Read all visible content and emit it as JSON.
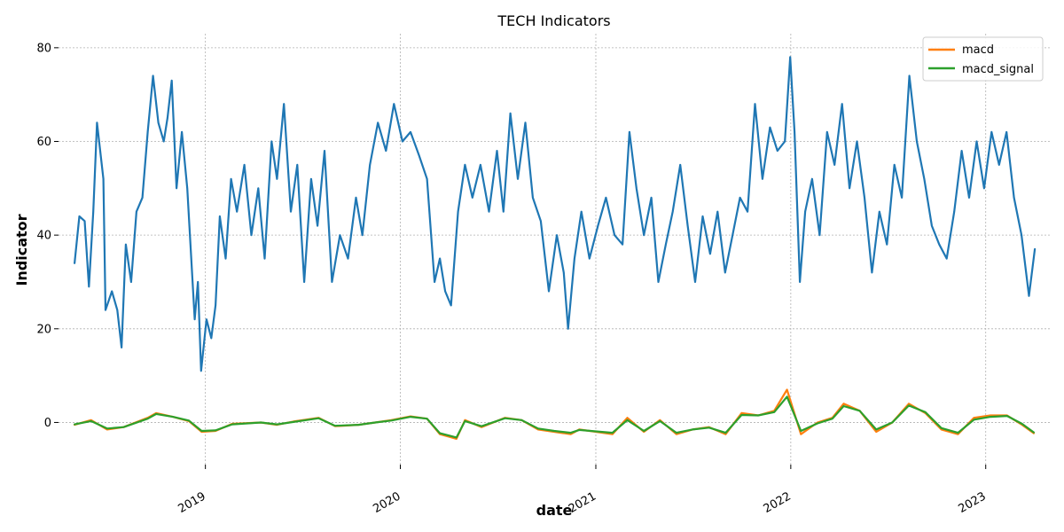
{
  "chart_data": {
    "type": "line",
    "title": "TECH Indicators",
    "xlabel": "date",
    "ylabel": "Indicator",
    "xlim": [
      "2018-04-01",
      "2023-05-01"
    ],
    "ylim": [
      -9,
      83
    ],
    "x_ticks": [
      "2019",
      "2020",
      "2021",
      "2022",
      "2023"
    ],
    "y_ticks": [
      0,
      20,
      40,
      60,
      80
    ],
    "grid": true,
    "legend_position": "top-right",
    "colors": {
      "rsi": "#1f77b4",
      "macd": "#ff7f0e",
      "macd_signal": "#2ca02c"
    },
    "series": [
      {
        "key": "rsi",
        "values": [
          [
            "2018-05-01",
            34
          ],
          [
            "2018-05-10",
            44
          ],
          [
            "2018-05-20",
            43
          ],
          [
            "2018-05-28",
            29
          ],
          [
            "2018-06-05",
            45
          ],
          [
            "2018-06-12",
            64
          ],
          [
            "2018-06-24",
            52
          ],
          [
            "2018-06-28",
            24
          ],
          [
            "2018-07-10",
            28
          ],
          [
            "2018-07-20",
            24
          ],
          [
            "2018-07-28",
            16
          ],
          [
            "2018-08-05",
            38
          ],
          [
            "2018-08-15",
            30
          ],
          [
            "2018-08-25",
            45
          ],
          [
            "2018-09-05",
            48
          ],
          [
            "2018-09-15",
            62
          ],
          [
            "2018-09-25",
            74
          ],
          [
            "2018-10-05",
            64
          ],
          [
            "2018-10-15",
            60
          ],
          [
            "2018-10-22",
            65
          ],
          [
            "2018-10-30",
            73
          ],
          [
            "2018-11-08",
            50
          ],
          [
            "2018-11-18",
            62
          ],
          [
            "2018-11-28",
            50
          ],
          [
            "2018-12-12",
            22
          ],
          [
            "2018-12-18",
            30
          ],
          [
            "2018-12-24",
            11
          ],
          [
            "2019-01-03",
            22
          ],
          [
            "2019-01-12",
            18
          ],
          [
            "2019-01-20",
            25
          ],
          [
            "2019-01-28",
            44
          ],
          [
            "2019-02-08",
            35
          ],
          [
            "2019-02-18",
            52
          ],
          [
            "2019-03-01",
            45
          ],
          [
            "2019-03-15",
            55
          ],
          [
            "2019-03-28",
            40
          ],
          [
            "2019-04-10",
            50
          ],
          [
            "2019-04-22",
            35
          ],
          [
            "2019-05-05",
            60
          ],
          [
            "2019-05-15",
            52
          ],
          [
            "2019-05-28",
            68
          ],
          [
            "2019-06-10",
            45
          ],
          [
            "2019-06-22",
            55
          ],
          [
            "2019-07-05",
            30
          ],
          [
            "2019-07-18",
            52
          ],
          [
            "2019-07-30",
            42
          ],
          [
            "2019-08-12",
            58
          ],
          [
            "2019-08-26",
            30
          ],
          [
            "2019-09-10",
            40
          ],
          [
            "2019-09-25",
            35
          ],
          [
            "2019-10-10",
            48
          ],
          [
            "2019-10-22",
            40
          ],
          [
            "2019-11-05",
            55
          ],
          [
            "2019-11-20",
            64
          ],
          [
            "2019-12-05",
            58
          ],
          [
            "2019-12-20",
            68
          ],
          [
            "2020-01-05",
            60
          ],
          [
            "2020-01-20",
            62
          ],
          [
            "2020-02-05",
            57
          ],
          [
            "2020-02-20",
            52
          ],
          [
            "2020-03-05",
            30
          ],
          [
            "2020-03-15",
            35
          ],
          [
            "2020-03-25",
            28
          ],
          [
            "2020-04-05",
            25
          ],
          [
            "2020-04-18",
            45
          ],
          [
            "2020-05-01",
            55
          ],
          [
            "2020-05-15",
            48
          ],
          [
            "2020-05-30",
            55
          ],
          [
            "2020-06-15",
            45
          ],
          [
            "2020-06-30",
            58
          ],
          [
            "2020-07-12",
            45
          ],
          [
            "2020-07-25",
            66
          ],
          [
            "2020-08-08",
            52
          ],
          [
            "2020-08-22",
            64
          ],
          [
            "2020-09-05",
            48
          ],
          [
            "2020-09-20",
            43
          ],
          [
            "2020-10-05",
            28
          ],
          [
            "2020-10-20",
            40
          ],
          [
            "2020-11-02",
            32
          ],
          [
            "2020-11-10",
            20
          ],
          [
            "2020-11-22",
            35
          ],
          [
            "2020-12-05",
            45
          ],
          [
            "2020-12-20",
            35
          ],
          [
            "2021-01-05",
            42
          ],
          [
            "2021-01-20",
            48
          ],
          [
            "2021-02-05",
            40
          ],
          [
            "2021-02-20",
            38
          ],
          [
            "2021-03-05",
            62
          ],
          [
            "2021-03-18",
            50
          ],
          [
            "2021-04-01",
            40
          ],
          [
            "2021-04-15",
            48
          ],
          [
            "2021-04-28",
            30
          ],
          [
            "2021-05-12",
            38
          ],
          [
            "2021-05-25",
            45
          ],
          [
            "2021-06-08",
            55
          ],
          [
            "2021-06-22",
            42
          ],
          [
            "2021-07-06",
            30
          ],
          [
            "2021-07-20",
            44
          ],
          [
            "2021-08-03",
            36
          ],
          [
            "2021-08-17",
            45
          ],
          [
            "2021-08-31",
            32
          ],
          [
            "2021-09-14",
            40
          ],
          [
            "2021-09-28",
            48
          ],
          [
            "2021-10-12",
            45
          ],
          [
            "2021-10-26",
            68
          ],
          [
            "2021-11-09",
            52
          ],
          [
            "2021-11-23",
            63
          ],
          [
            "2021-12-07",
            58
          ],
          [
            "2021-12-21",
            60
          ],
          [
            "2021-12-31",
            78
          ],
          [
            "2022-01-08",
            62
          ],
          [
            "2022-01-18",
            30
          ],
          [
            "2022-01-28",
            45
          ],
          [
            "2022-02-10",
            52
          ],
          [
            "2022-02-24",
            40
          ],
          [
            "2022-03-10",
            62
          ],
          [
            "2022-03-24",
            55
          ],
          [
            "2022-04-07",
            68
          ],
          [
            "2022-04-21",
            50
          ],
          [
            "2022-05-05",
            60
          ],
          [
            "2022-05-19",
            48
          ],
          [
            "2022-06-02",
            32
          ],
          [
            "2022-06-16",
            45
          ],
          [
            "2022-06-30",
            38
          ],
          [
            "2022-07-14",
            55
          ],
          [
            "2022-07-28",
            48
          ],
          [
            "2022-08-11",
            74
          ],
          [
            "2022-08-25",
            60
          ],
          [
            "2022-09-08",
            52
          ],
          [
            "2022-09-22",
            42
          ],
          [
            "2022-10-06",
            38
          ],
          [
            "2022-10-20",
            35
          ],
          [
            "2022-11-03",
            45
          ],
          [
            "2022-11-17",
            58
          ],
          [
            "2022-12-01",
            48
          ],
          [
            "2022-12-15",
            60
          ],
          [
            "2022-12-29",
            50
          ],
          [
            "2023-01-12",
            62
          ],
          [
            "2023-01-26",
            55
          ],
          [
            "2023-02-09",
            62
          ],
          [
            "2023-02-23",
            48
          ],
          [
            "2023-03-09",
            40
          ],
          [
            "2023-03-23",
            27
          ],
          [
            "2023-04-03",
            37
          ]
        ]
      },
      {
        "key": "macd",
        "name": "macd",
        "values": [
          [
            "2018-05-01",
            -0.5
          ],
          [
            "2018-06-01",
            0.5
          ],
          [
            "2018-07-01",
            -1.5
          ],
          [
            "2018-08-01",
            -1.0
          ],
          [
            "2018-09-15",
            1.0
          ],
          [
            "2018-10-01",
            2.0
          ],
          [
            "2018-11-01",
            1.2
          ],
          [
            "2018-12-01",
            0.3
          ],
          [
            "2018-12-25",
            -2.0
          ],
          [
            "2019-01-20",
            -1.8
          ],
          [
            "2019-02-20",
            -0.3
          ],
          [
            "2019-04-15",
            0.0
          ],
          [
            "2019-05-15",
            -0.5
          ],
          [
            "2019-06-15",
            0.2
          ],
          [
            "2019-08-01",
            1.0
          ],
          [
            "2019-09-01",
            -0.8
          ],
          [
            "2019-10-15",
            -0.5
          ],
          [
            "2019-11-15",
            0.0
          ],
          [
            "2019-12-15",
            0.5
          ],
          [
            "2020-01-20",
            1.3
          ],
          [
            "2020-02-20",
            0.8
          ],
          [
            "2020-03-15",
            -2.5
          ],
          [
            "2020-04-15",
            -3.5
          ],
          [
            "2020-05-01",
            0.5
          ],
          [
            "2020-06-01",
            -1.0
          ],
          [
            "2020-07-15",
            1.0
          ],
          [
            "2020-08-15",
            0.5
          ],
          [
            "2020-09-15",
            -1.5
          ],
          [
            "2020-10-15",
            -2.0
          ],
          [
            "2020-11-15",
            -2.5
          ],
          [
            "2020-12-01",
            -1.5
          ],
          [
            "2021-01-01",
            -2.0
          ],
          [
            "2021-02-01",
            -2.5
          ],
          [
            "2021-03-01",
            1.0
          ],
          [
            "2021-04-01",
            -2.0
          ],
          [
            "2021-05-01",
            0.5
          ],
          [
            "2021-06-01",
            -2.5
          ],
          [
            "2021-07-01",
            -1.5
          ],
          [
            "2021-08-01",
            -1.0
          ],
          [
            "2021-09-01",
            -2.5
          ],
          [
            "2021-10-01",
            2.0
          ],
          [
            "2021-11-01",
            1.5
          ],
          [
            "2021-12-01",
            2.5
          ],
          [
            "2021-12-25",
            7.0
          ],
          [
            "2022-01-20",
            -2.5
          ],
          [
            "2022-02-20",
            0.0
          ],
          [
            "2022-03-20",
            1.0
          ],
          [
            "2022-04-10",
            4.0
          ],
          [
            "2022-05-10",
            2.5
          ],
          [
            "2022-06-10",
            -2.0
          ],
          [
            "2022-07-10",
            0.0
          ],
          [
            "2022-08-10",
            4.0
          ],
          [
            "2022-09-10",
            2.0
          ],
          [
            "2022-10-10",
            -1.5
          ],
          [
            "2022-11-10",
            -2.5
          ],
          [
            "2022-12-10",
            1.0
          ],
          [
            "2023-01-10",
            1.5
          ],
          [
            "2023-02-10",
            1.5
          ],
          [
            "2023-03-10",
            -0.5
          ],
          [
            "2023-04-01",
            -2.3
          ]
        ]
      },
      {
        "key": "macd_signal",
        "name": "macd_signal",
        "values": [
          [
            "2018-05-01",
            -0.4
          ],
          [
            "2018-06-01",
            0.3
          ],
          [
            "2018-07-01",
            -1.3
          ],
          [
            "2018-08-01",
            -1.0
          ],
          [
            "2018-09-15",
            0.8
          ],
          [
            "2018-10-01",
            1.8
          ],
          [
            "2018-11-01",
            1.2
          ],
          [
            "2018-12-01",
            0.4
          ],
          [
            "2018-12-25",
            -1.8
          ],
          [
            "2019-01-20",
            -1.7
          ],
          [
            "2019-02-20",
            -0.4
          ],
          [
            "2019-04-15",
            0.0
          ],
          [
            "2019-05-15",
            -0.4
          ],
          [
            "2019-06-15",
            0.1
          ],
          [
            "2019-08-01",
            0.9
          ],
          [
            "2019-09-01",
            -0.7
          ],
          [
            "2019-10-15",
            -0.5
          ],
          [
            "2019-11-15",
            0.0
          ],
          [
            "2019-12-15",
            0.4
          ],
          [
            "2020-01-20",
            1.2
          ],
          [
            "2020-02-20",
            0.8
          ],
          [
            "2020-03-15",
            -2.3
          ],
          [
            "2020-04-15",
            -3.2
          ],
          [
            "2020-05-01",
            0.3
          ],
          [
            "2020-06-01",
            -0.8
          ],
          [
            "2020-07-15",
            0.9
          ],
          [
            "2020-08-15",
            0.5
          ],
          [
            "2020-09-15",
            -1.3
          ],
          [
            "2020-10-15",
            -1.8
          ],
          [
            "2020-11-15",
            -2.2
          ],
          [
            "2020-12-01",
            -1.6
          ],
          [
            "2021-01-01",
            -1.9
          ],
          [
            "2021-02-01",
            -2.2
          ],
          [
            "2021-03-01",
            0.5
          ],
          [
            "2021-04-01",
            -1.8
          ],
          [
            "2021-05-01",
            0.3
          ],
          [
            "2021-06-01",
            -2.2
          ],
          [
            "2021-07-01",
            -1.5
          ],
          [
            "2021-08-01",
            -1.1
          ],
          [
            "2021-09-01",
            -2.2
          ],
          [
            "2021-10-01",
            1.6
          ],
          [
            "2021-11-01",
            1.5
          ],
          [
            "2021-12-01",
            2.2
          ],
          [
            "2021-12-25",
            5.5
          ],
          [
            "2022-01-20",
            -1.8
          ],
          [
            "2022-02-20",
            -0.2
          ],
          [
            "2022-03-20",
            0.8
          ],
          [
            "2022-04-10",
            3.5
          ],
          [
            "2022-05-10",
            2.5
          ],
          [
            "2022-06-10",
            -1.5
          ],
          [
            "2022-07-10",
            0.0
          ],
          [
            "2022-08-10",
            3.6
          ],
          [
            "2022-09-10",
            2.2
          ],
          [
            "2022-10-10",
            -1.2
          ],
          [
            "2022-11-10",
            -2.2
          ],
          [
            "2022-12-10",
            0.6
          ],
          [
            "2023-01-10",
            1.2
          ],
          [
            "2023-02-10",
            1.4
          ],
          [
            "2023-03-10",
            -0.3
          ],
          [
            "2023-04-01",
            -2.1
          ]
        ]
      }
    ]
  }
}
